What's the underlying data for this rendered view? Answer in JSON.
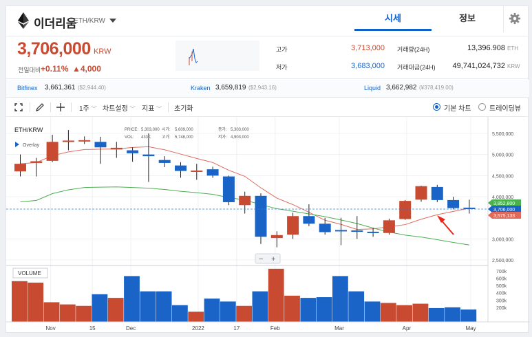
{
  "header": {
    "coin_name": "이더리움",
    "pair": "ETH/KRW",
    "tab_price": "시세",
    "tab_info": "정보"
  },
  "price": {
    "current": "3,706,000",
    "unit": "KRW",
    "change_label": "전일대비",
    "change_pct": "+0.11%",
    "change_amt": "▲4,000"
  },
  "stats": {
    "high_label": "고가",
    "high_value": "3,713,000",
    "low_label": "저가",
    "low_value": "3,683,000",
    "volume_label": "거래량(24H)",
    "volume_value": "13,396.908",
    "volume_unit": "ETH",
    "amount_label": "거래대금(24H)",
    "amount_value": "49,741,024,732",
    "amount_unit": "KRW"
  },
  "exchanges": [
    {
      "name": "Bitfinex",
      "value": "3,661,361",
      "sub": "($2,944.40)"
    },
    {
      "name": "Kraken",
      "value": "3,659,819",
      "sub": "($2,943.16)"
    },
    {
      "name": "Liquid",
      "value": "3,662,982",
      "sub": "(¥378,419.00)"
    }
  ],
  "toolbar": {
    "period": "1주",
    "chart_settings": "차트설정",
    "indicators": "지표",
    "reset": "초기화",
    "basic_chart": "기본 차트",
    "tradingview": "트레이딩뷰"
  },
  "chart_labels": {
    "symbol": "ETH/KRW",
    "overlay": "Overlay",
    "price_key": "PRICE:",
    "price_val": "5,303,000",
    "open_key": "시가:",
    "open_val": "5,609,000",
    "close_key": "종가:",
    "close_val": "5,303,000",
    "vol_key": "VOL:",
    "vol_val": "433K",
    "high_key": "고가:",
    "high_val": "5,748,000",
    "low_key": "저가:",
    "low_val": "4,903,000",
    "volume_title": "VOLUME",
    "zoom_out": "−",
    "zoom_in": "+",
    "badge_green": "3,852,800",
    "badge_blue": "3,706,000",
    "badge_red": "3,575,133"
  },
  "colors": {
    "up": "#c84a31",
    "down": "#1a64c8",
    "ma_long": "#4caf50",
    "ma_short": "#e06a5a",
    "accent": "#1261c4"
  },
  "chart_data": {
    "type": "candlestick",
    "x_ticks": [
      "Nov",
      "15",
      "Dec",
      "2022",
      "17",
      "Feb",
      "Mar",
      "Apr",
      "May"
    ],
    "y_ticks": [
      "5,500,000",
      "5,000,000",
      "4,500,000",
      "4,000,000",
      "3,000,000",
      "2,500,000"
    ],
    "volume_ticks": [
      "700k",
      "600k",
      "500k",
      "400k",
      "300k",
      "200k"
    ],
    "candles": [
      {
        "o": 4600000,
        "c": 4780000,
        "h": 5000000,
        "l": 4480000,
        "v": 560000
      },
      {
        "o": 4800000,
        "c": 4840000,
        "h": 4920000,
        "l": 4480000,
        "v": 540000
      },
      {
        "o": 4850000,
        "c": 5300000,
        "h": 5470000,
        "l": 4820000,
        "v": 270000
      },
      {
        "o": 5300000,
        "c": 5330000,
        "h": 5580000,
        "l": 5100000,
        "v": 240000
      },
      {
        "o": 5320000,
        "c": 5340000,
        "h": 5430000,
        "l": 5250000,
        "v": 220000
      },
      {
        "o": 5300000,
        "c": 5170000,
        "h": 5420000,
        "l": 4780000,
        "v": 380000
      },
      {
        "o": 5120000,
        "c": 5160000,
        "h": 5300000,
        "l": 4920000,
        "v": 330000
      },
      {
        "o": 5100000,
        "c": 5030000,
        "h": 5170000,
        "l": 4830000,
        "v": 630000
      },
      {
        "o": 5000000,
        "c": 4960000,
        "h": 5500000,
        "l": 4350000,
        "v": 420000
      },
      {
        "o": 4870000,
        "c": 4800000,
        "h": 4960000,
        "l": 4700000,
        "v": 420000
      },
      {
        "o": 4740000,
        "c": 4610000,
        "h": 4820000,
        "l": 4450000,
        "v": 230000
      },
      {
        "o": 4600000,
        "c": 4620000,
        "h": 4780000,
        "l": 4400000,
        "v": 140000
      },
      {
        "o": 4650000,
        "c": 4500000,
        "h": 4710000,
        "l": 4450000,
        "v": 320000
      },
      {
        "o": 4480000,
        "c": 3870000,
        "h": 4500000,
        "l": 3800000,
        "v": 280000
      },
      {
        "o": 3800000,
        "c": 4020000,
        "h": 4120000,
        "l": 3600000,
        "v": 220000
      },
      {
        "o": 4020000,
        "c": 3050000,
        "h": 4080000,
        "l": 2880000,
        "v": 420000
      },
      {
        "o": 3020000,
        "c": 3090000,
        "h": 3180000,
        "l": 2800000,
        "v": 730000
      },
      {
        "o": 3100000,
        "c": 3540000,
        "h": 3620000,
        "l": 3000000,
        "v": 360000
      },
      {
        "o": 3540000,
        "c": 3360000,
        "h": 3820000,
        "l": 3300000,
        "v": 330000
      },
      {
        "o": 3360000,
        "c": 3160000,
        "h": 3500000,
        "l": 3100000,
        "v": 340000
      },
      {
        "o": 3210000,
        "c": 3190000,
        "h": 3500000,
        "l": 2850000,
        "v": 630000
      },
      {
        "o": 3200000,
        "c": 3180000,
        "h": 3540000,
        "l": 3000000,
        "v": 420000
      },
      {
        "o": 3170000,
        "c": 3140000,
        "h": 3260000,
        "l": 3050000,
        "v": 280000
      },
      {
        "o": 3140000,
        "c": 3440000,
        "h": 3480000,
        "l": 3100000,
        "v": 260000
      },
      {
        "o": 3470000,
        "c": 3900000,
        "h": 3920000,
        "l": 3450000,
        "v": 230000
      },
      {
        "o": 3930000,
        "c": 4250000,
        "h": 4260000,
        "l": 3880000,
        "v": 250000
      },
      {
        "o": 4230000,
        "c": 3920000,
        "h": 4280000,
        "l": 3870000,
        "v": 190000
      },
      {
        "o": 3920000,
        "c": 3730000,
        "h": 4000000,
        "l": 3700000,
        "v": 200000
      },
      {
        "o": 3740000,
        "c": 3706000,
        "h": 3930000,
        "l": 3600000,
        "v": 170000
      }
    ]
  }
}
